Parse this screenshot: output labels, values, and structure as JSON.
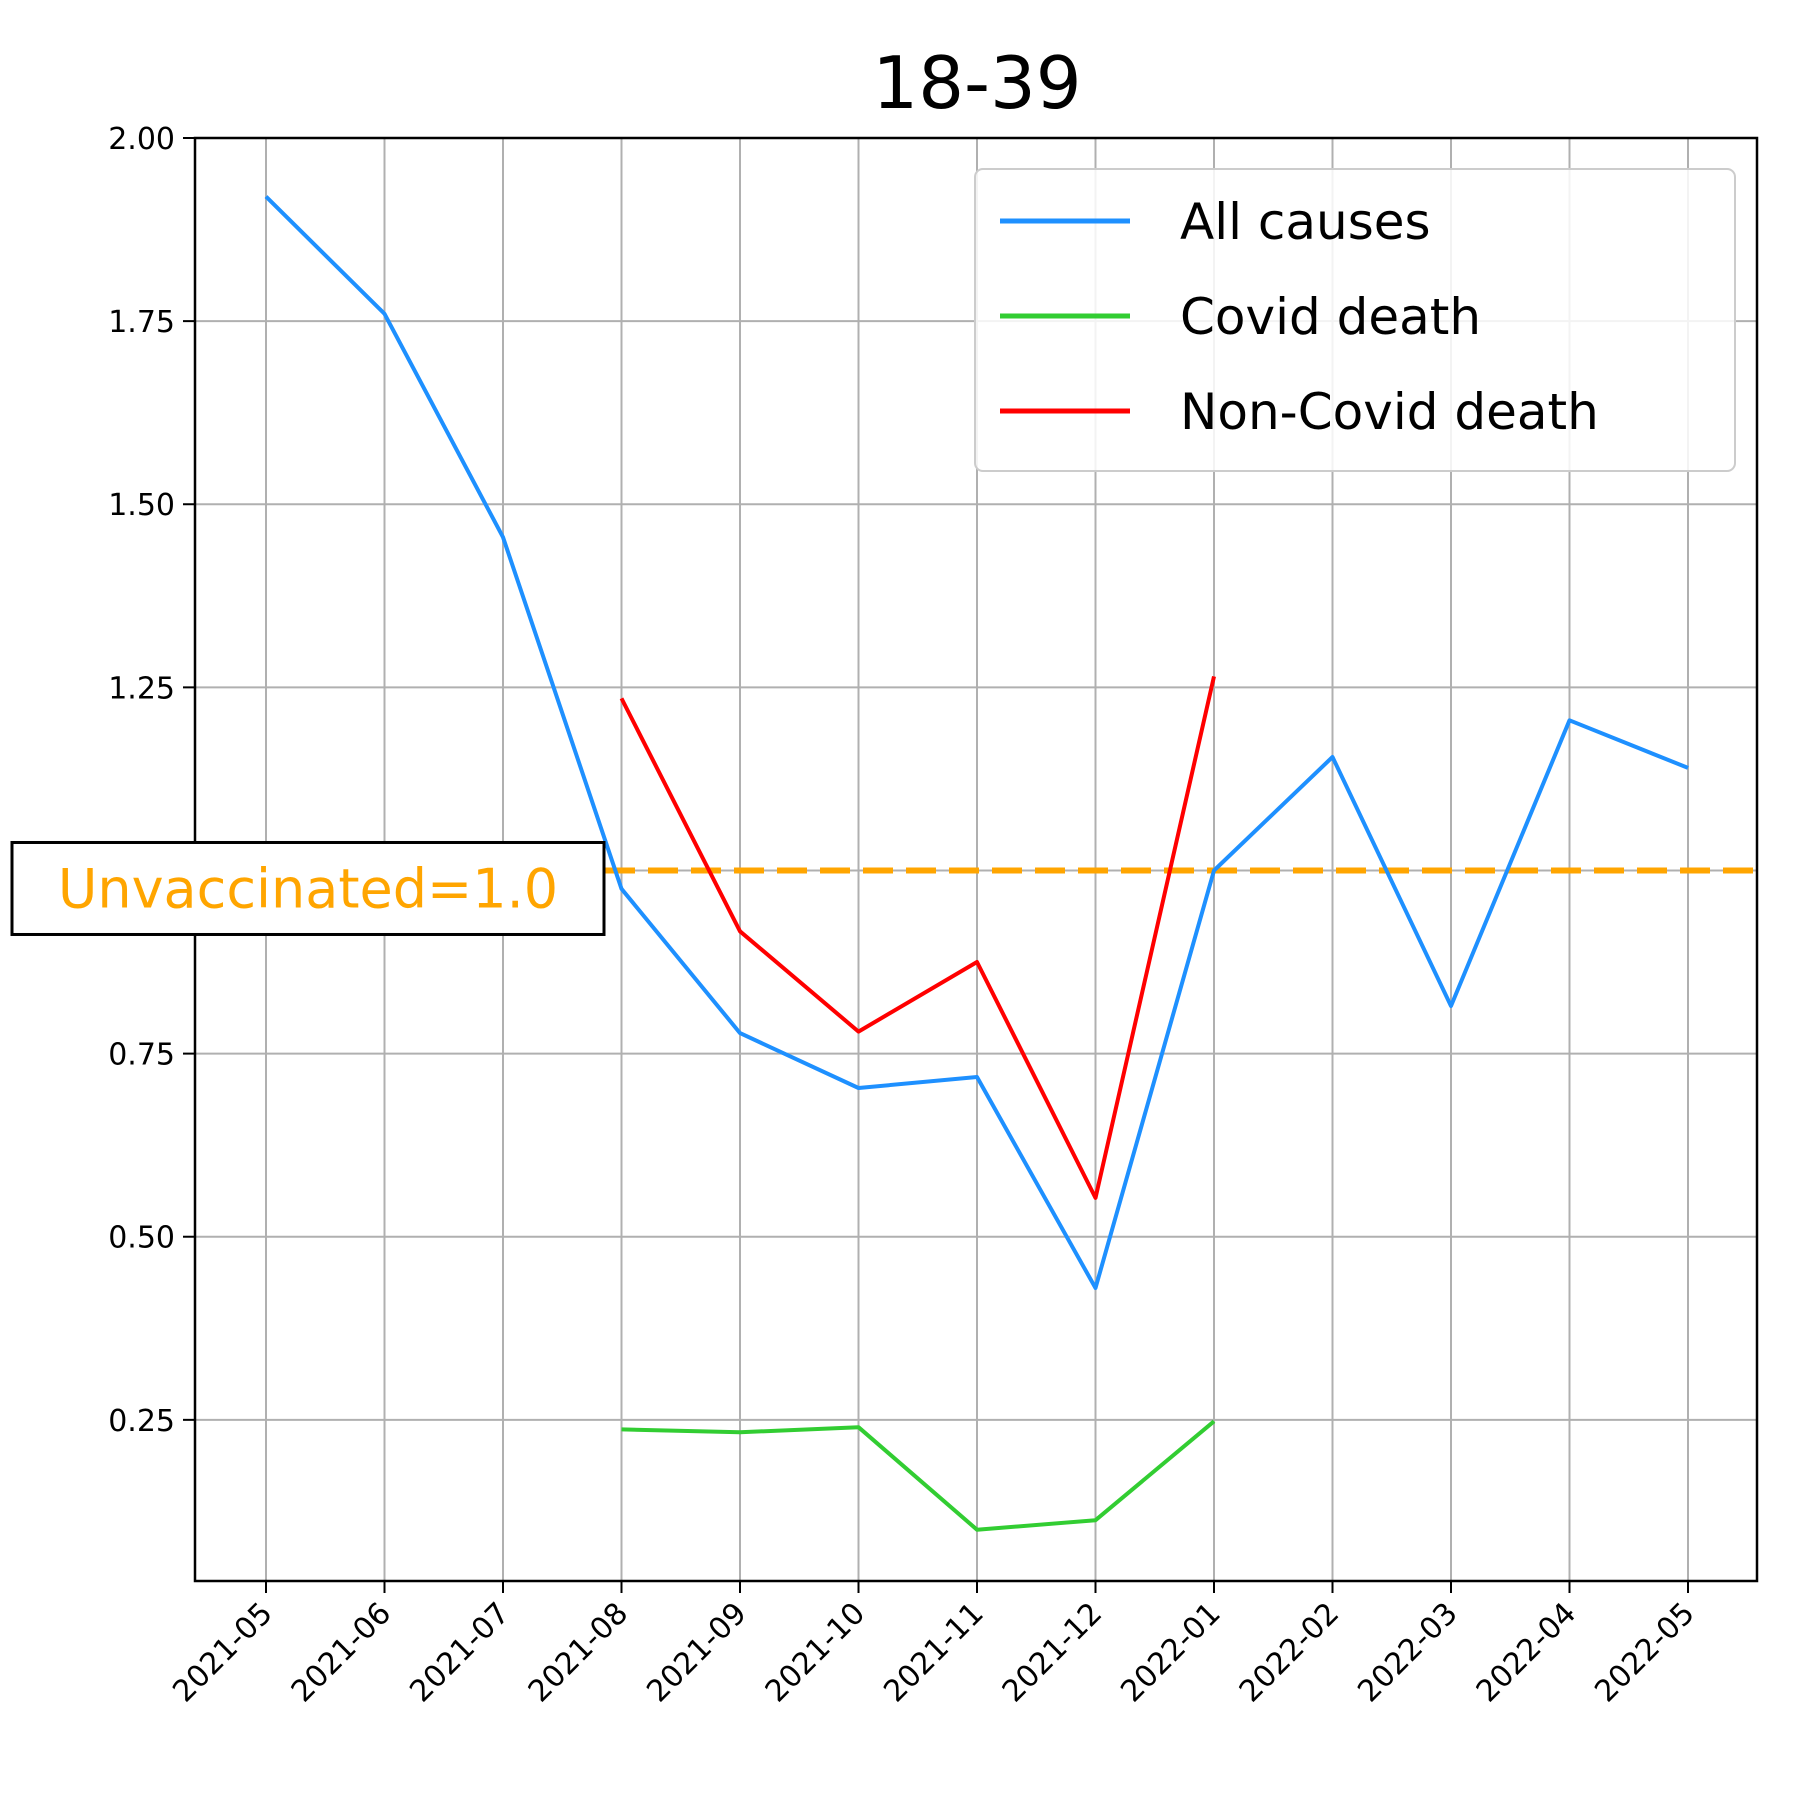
{
  "chart_data": {
    "type": "line",
    "title": "18-39",
    "xlabel": "",
    "ylabel": "",
    "categories": [
      "2021-05",
      "2021-06",
      "2021-07",
      "2021-08",
      "2021-09",
      "2021-10",
      "2021-11",
      "2021-12",
      "2022-01",
      "2022-02",
      "2022-03",
      "2022-04",
      "2022-05"
    ],
    "ylim": [
      0.03,
      2.0
    ],
    "yticks": [
      "0.25",
      "0.50",
      "0.75",
      "1.25",
      "1.50",
      "1.75",
      "2.00"
    ],
    "grid": true,
    "legend_position": "top-right",
    "series": [
      {
        "name": "All causes",
        "color": "#1e90ff",
        "values": [
          1.92,
          1.76,
          1.455,
          0.975,
          0.778,
          0.703,
          0.718,
          0.43,
          1.0,
          1.155,
          0.815,
          1.205,
          1.14
        ]
      },
      {
        "name": "Covid death",
        "color": "#32cd32",
        "values": [
          null,
          null,
          null,
          0.237,
          0.233,
          0.24,
          0.1,
          0.113,
          0.248,
          null,
          null,
          null,
          null
        ]
      },
      {
        "name": "Non-Covid death",
        "color": "#ff0000",
        "values": [
          null,
          null,
          null,
          1.235,
          0.917,
          0.78,
          0.875,
          0.553,
          1.265,
          null,
          null,
          null,
          null
        ]
      }
    ],
    "reference_line": {
      "value": 1.0,
      "label": "Unvaccinated=1.0",
      "color": "#ffa500"
    }
  }
}
